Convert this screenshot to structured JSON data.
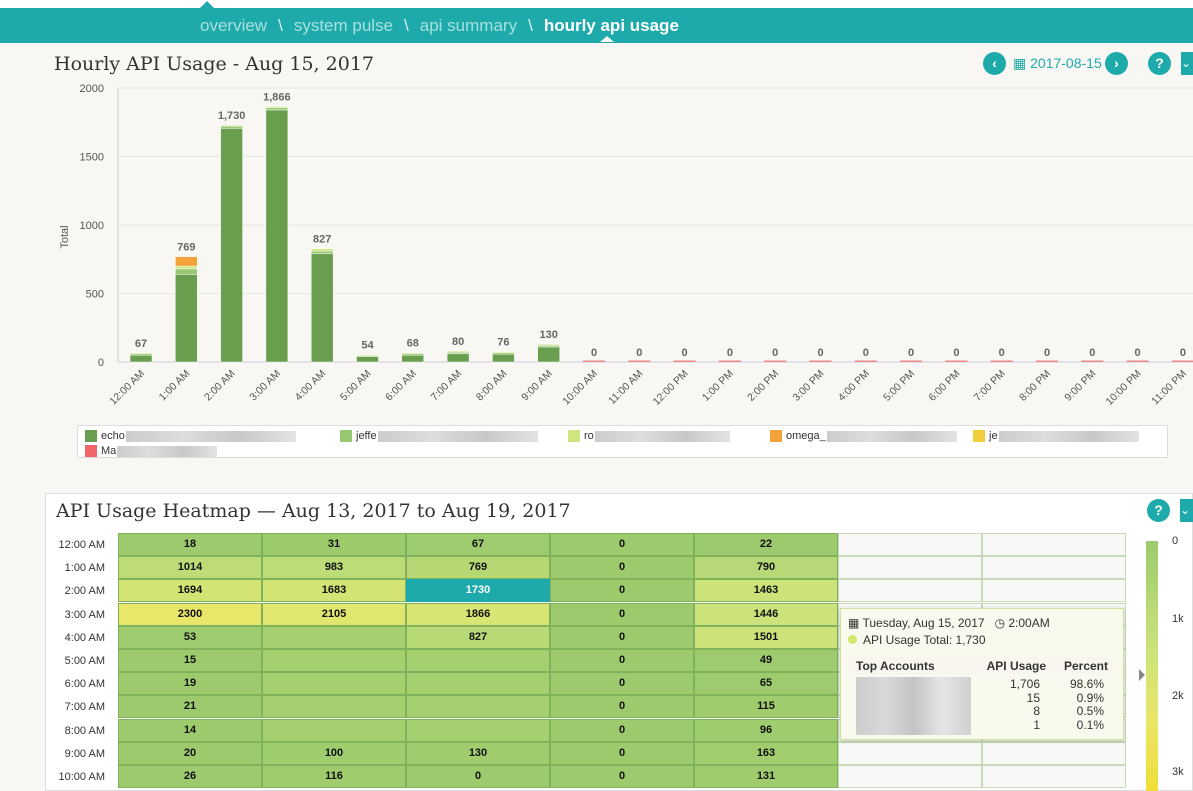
{
  "breadcrumb": [
    {
      "label": "overview"
    },
    {
      "label": "system pulse"
    },
    {
      "label": "api summary"
    },
    {
      "label": "hourly api usage"
    }
  ],
  "chart_section": {
    "title": "Hourly API Usage - Aug 15, 2017",
    "date": "2017-08-15",
    "help": "?"
  },
  "chart_data": {
    "type": "bar",
    "stacked": true,
    "ylabel": "Total",
    "ylim": [
      0,
      2000
    ],
    "yticks": [
      0,
      500,
      1000,
      1500,
      2000
    ],
    "categories": [
      "12:00 AM",
      "1:00 AM",
      "2:00 AM",
      "3:00 AM",
      "4:00 AM",
      "5:00 AM",
      "6:00 AM",
      "7:00 AM",
      "8:00 AM",
      "9:00 AM",
      "10:00 AM",
      "11:00 AM",
      "12:00 PM",
      "1:00 PM",
      "2:00 PM",
      "3:00 PM",
      "4:00 PM",
      "5:00 PM",
      "6:00 PM",
      "7:00 PM",
      "8:00 PM",
      "9:00 PM",
      "10:00 PM",
      "11:00 PM"
    ],
    "totals": [
      67,
      769,
      1730,
      1866,
      827,
      54,
      68,
      80,
      76,
      130,
      0,
      0,
      0,
      0,
      0,
      0,
      0,
      0,
      0,
      0,
      0,
      0,
      0,
      0
    ],
    "total_labels": [
      "67",
      "769",
      "1,730",
      "1,866",
      "827",
      "54",
      "68",
      "80",
      "76",
      "130",
      "0",
      "0",
      "0",
      "0",
      "0",
      "0",
      "0",
      "0",
      "0",
      "0",
      "0",
      "0",
      "0",
      "0"
    ],
    "series": [
      {
        "name": "echosign1_14804683515B387AE16F33",
        "color": "#6a9e4f",
        "values": [
          50,
          640,
          1706,
          1840,
          790,
          40,
          50,
          60,
          58,
          110,
          0,
          0,
          0,
          0,
          0,
          0,
          0,
          0,
          0,
          0,
          0,
          0,
          0,
          0
        ]
      },
      {
        "name": "jeffer...@adobe.com",
        "color": "#98c972",
        "values": [
          10,
          40,
          15,
          16,
          20,
          8,
          10,
          12,
          10,
          12,
          0,
          0,
          0,
          0,
          0,
          0,
          0,
          0,
          0,
          0,
          0,
          0,
          0,
          0
        ]
      },
      {
        "name": "ro...@adobe.com",
        "color": "#cfe67e",
        "values": [
          7,
          20,
          8,
          10,
          17,
          6,
          8,
          8,
          8,
          8,
          0,
          0,
          0,
          0,
          0,
          0,
          0,
          0,
          0,
          0,
          0,
          0,
          0,
          0
        ]
      },
      {
        "name": "omega_...",
        "color": "#f3a33a",
        "values": [
          0,
          69,
          1,
          0,
          0,
          0,
          0,
          0,
          0,
          0,
          0,
          0,
          0,
          0,
          0,
          0,
          0,
          0,
          0,
          0,
          0,
          0,
          0,
          0
        ]
      },
      {
        "name": "je...m",
        "color": "#f1cf3b",
        "values": [
          0,
          0,
          0,
          0,
          0,
          0,
          0,
          0,
          0,
          0,
          0,
          0,
          0,
          0,
          0,
          0,
          0,
          0,
          0,
          0,
          0,
          0,
          0,
          0
        ]
      },
      {
        "name": "Ma...",
        "color": "#f06565",
        "values": [
          0,
          0,
          0,
          0,
          0,
          0,
          0,
          0,
          0,
          0,
          0,
          0,
          0,
          0,
          0,
          0,
          0,
          0,
          0,
          0,
          0,
          0,
          0,
          0
        ]
      }
    ],
    "legend": "bottom"
  },
  "legend_labels": [
    "echo",
    "jeffe",
    "ro",
    "omega_",
    "je",
    "Ma"
  ],
  "heatmap": {
    "title": "API Usage Heatmap — Aug 13, 2017 to Aug 19, 2017",
    "help": "?",
    "rows": [
      "12:00 AM",
      "1:00 AM",
      "2:00 AM",
      "3:00 AM",
      "4:00 AM",
      "5:00 AM",
      "6:00 AM",
      "7:00 AM",
      "8:00 AM",
      "9:00 AM",
      "10:00 AM"
    ],
    "cells": [
      [
        "18",
        "31",
        "67",
        "0",
        "22",
        "",
        ""
      ],
      [
        "1014",
        "983",
        "769",
        "0",
        "790",
        "",
        ""
      ],
      [
        "1694",
        "1683",
        "1730",
        "0",
        "1463",
        "",
        ""
      ],
      [
        "2300",
        "2105",
        "1866",
        "0",
        "1446",
        "",
        ""
      ],
      [
        "53",
        "",
        "827",
        "0",
        "1501",
        "",
        ""
      ],
      [
        "15",
        "",
        "",
        "0",
        "49",
        "",
        ""
      ],
      [
        "19",
        "",
        "",
        "0",
        "65",
        "",
        ""
      ],
      [
        "21",
        "",
        "",
        "0",
        "115",
        "",
        ""
      ],
      [
        "14",
        "",
        "",
        "0",
        "96",
        "",
        ""
      ],
      [
        "20",
        "100",
        "130",
        "0",
        "163",
        "",
        ""
      ],
      [
        "26",
        "116",
        "0",
        "0",
        "131",
        "",
        ""
      ]
    ],
    "colorbar": [
      "0",
      "1k",
      "2k",
      "3k"
    ]
  },
  "tooltip": {
    "date": "Tuesday, Aug 15, 2017",
    "time": "2:00AM",
    "total": "API Usage Total: 1,730",
    "headers": [
      "Top Accounts",
      "API Usage",
      "Percent"
    ],
    "rows": [
      {
        "usage": "1,706",
        "percent": "98.6%"
      },
      {
        "usage": "15",
        "percent": "0.9%"
      },
      {
        "usage": "8",
        "percent": "0.5%"
      },
      {
        "usage": "1",
        "percent": "0.1%"
      }
    ]
  }
}
